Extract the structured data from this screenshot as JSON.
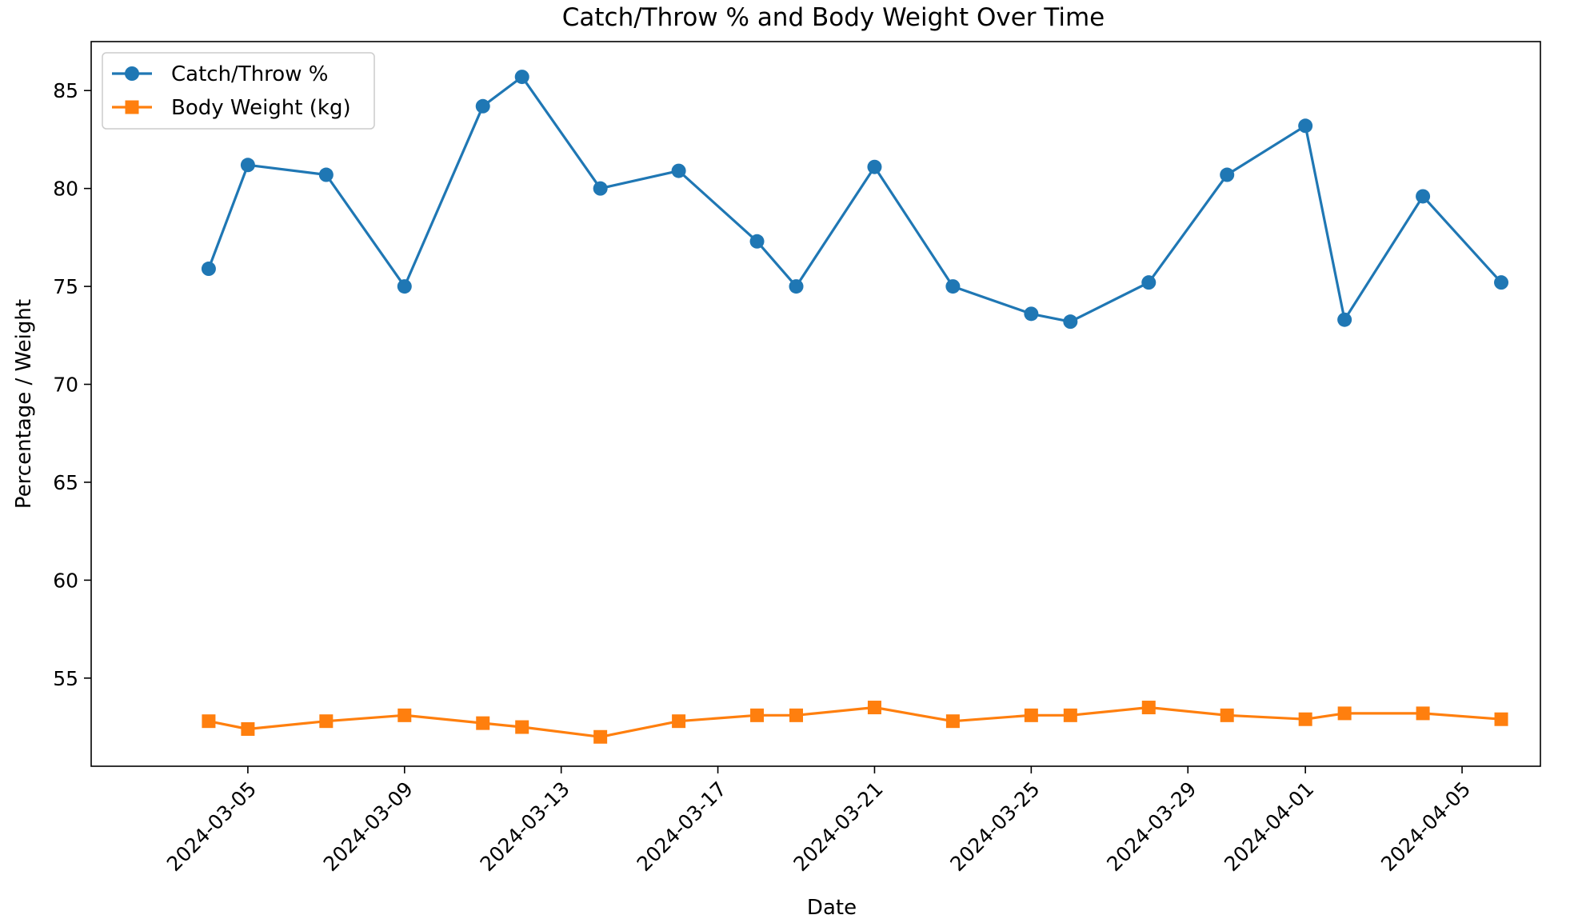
{
  "chart_data": {
    "type": "line",
    "title": "Catch/Throw % and Body Weight Over Time",
    "xlabel": "Date",
    "ylabel": "Percentage / Weight",
    "xlim": [
      "2024-03-01",
      "2024-04-07"
    ],
    "ylim": [
      50.5,
      87.5
    ],
    "x_ticks": [
      "2024-03-05",
      "2024-03-09",
      "2024-03-13",
      "2024-03-17",
      "2024-03-21",
      "2024-03-25",
      "2024-03-29",
      "2024-04-01",
      "2024-04-05"
    ],
    "y_ticks": [
      55,
      60,
      65,
      70,
      75,
      80,
      85
    ],
    "x_tick_rotation_deg": 45,
    "grid": false,
    "legend_position": "top-left",
    "x": [
      "2024-03-04",
      "2024-03-05",
      "2024-03-07",
      "2024-03-09",
      "2024-03-11",
      "2024-03-12",
      "2024-03-14",
      "2024-03-16",
      "2024-03-18",
      "2024-03-19",
      "2024-03-21",
      "2024-03-23",
      "2024-03-25",
      "2024-03-26",
      "2024-03-28",
      "2024-03-30",
      "2024-04-01",
      "2024-04-02",
      "2024-04-04",
      "2024-04-06"
    ],
    "series": [
      {
        "name": "Catch/Throw %",
        "color": "#1f77b4",
        "marker": "circle",
        "values": [
          75.9,
          81.2,
          80.7,
          75.0,
          84.2,
          85.7,
          80.0,
          80.9,
          77.3,
          75.0,
          81.1,
          75.0,
          73.6,
          73.2,
          75.2,
          80.7,
          83.2,
          73.3,
          79.6,
          75.2
        ]
      },
      {
        "name": "Body Weight (kg)",
        "color": "#ff7f0e",
        "marker": "square",
        "values": [
          52.8,
          52.4,
          52.8,
          53.1,
          52.7,
          52.5,
          52.0,
          52.8,
          53.1,
          53.1,
          53.5,
          52.8,
          53.1,
          53.1,
          53.5,
          53.1,
          52.9,
          53.2,
          53.2,
          52.9
        ]
      }
    ]
  }
}
